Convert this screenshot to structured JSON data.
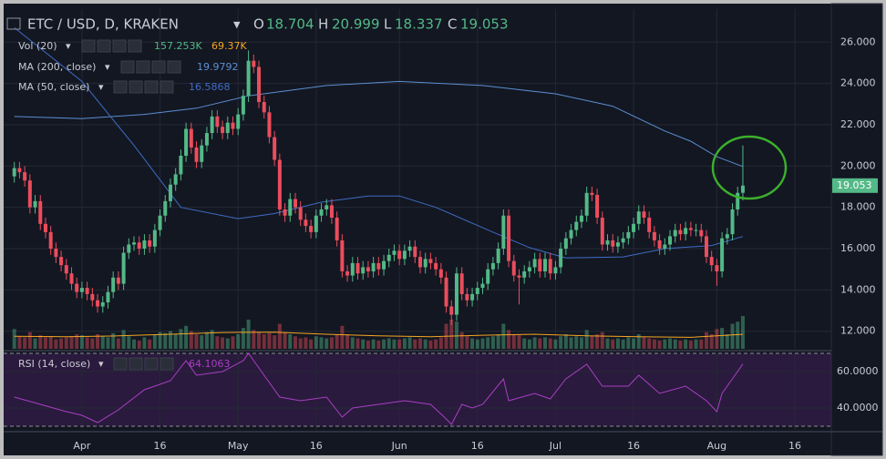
{
  "chart_data": {
    "type": "candlestick",
    "title": "ETC / USD, D, KRAKEN",
    "ohlc_labels": [
      "O",
      "H",
      "L",
      "C"
    ],
    "up_color": "#53b987",
    "down_color": "#eb4d5c",
    "xlim": [
      -1,
      157
    ],
    "xticks": [
      {
        "value": 13,
        "label": "Apr"
      },
      {
        "value": 28,
        "label": "16"
      },
      {
        "value": 43,
        "label": "May"
      },
      {
        "value": 58,
        "label": "16"
      },
      {
        "value": 74,
        "label": "Jun"
      },
      {
        "value": 89,
        "label": "16"
      },
      {
        "value": 104,
        "label": "Jul"
      },
      {
        "value": 119,
        "label": "16"
      },
      {
        "value": 135,
        "label": "Aug"
      },
      {
        "value": 150,
        "label": "16"
      }
    ],
    "ylim": [
      11.15,
      27.6
    ],
    "yticks": [
      {
        "value": 12,
        "label": "12.000"
      },
      {
        "value": 14,
        "label": "14.000"
      },
      {
        "value": 16,
        "label": "16.000"
      },
      {
        "value": 18,
        "label": "18.000"
      },
      {
        "value": 20,
        "label": "20.000"
      },
      {
        "value": 22,
        "label": "22.000"
      },
      {
        "value": 24,
        "label": "24.000"
      },
      {
        "value": 26,
        "label": "26.000"
      }
    ],
    "grid": true,
    "x": [
      0,
      1,
      2,
      3,
      4,
      5,
      6,
      7,
      8,
      9,
      10,
      11,
      12,
      13,
      14,
      15,
      16,
      17,
      18,
      19,
      20,
      21,
      22,
      23,
      24,
      25,
      26,
      27,
      28,
      29,
      30,
      31,
      32,
      33,
      34,
      35,
      36,
      37,
      38,
      39,
      40,
      41,
      42,
      43,
      44,
      45,
      46,
      47,
      48,
      49,
      50,
      51,
      52,
      53,
      54,
      55,
      56,
      57,
      58,
      59,
      60,
      61,
      62,
      63,
      64,
      65,
      66,
      67,
      68,
      69,
      70,
      71,
      72,
      73,
      74,
      75,
      76,
      77,
      78,
      79,
      80,
      81,
      82,
      83,
      84,
      85,
      86,
      87,
      88,
      89,
      90,
      91,
      92,
      93,
      94,
      95,
      96,
      97,
      98,
      99,
      100,
      101,
      102,
      103,
      104,
      105,
      106,
      107,
      108,
      109,
      110,
      111,
      112,
      113,
      114,
      115,
      116,
      117,
      118,
      119,
      120,
      121,
      122,
      123,
      124,
      125,
      126,
      127,
      128,
      129,
      130,
      131,
      132,
      133,
      134,
      135,
      136,
      137,
      138,
      139,
      140
    ],
    "open": [
      19.5,
      19.9,
      19.7,
      19.3,
      18.0,
      18.3,
      17.2,
      16.8,
      16.0,
      15.6,
      15.2,
      14.8,
      14.3,
      13.9,
      14.1,
      13.8,
      13.5,
      13.2,
      13.4,
      13.9,
      14.6,
      14.3,
      15.8,
      16.2,
      16.3,
      16.0,
      16.4,
      16.1,
      16.9,
      17.6,
      18.3,
      19.1,
      19.6,
      20.5,
      21.8,
      20.9,
      20.2,
      21.0,
      21.6,
      22.4,
      21.9,
      21.6,
      22.1,
      21.8,
      22.5,
      23.4,
      25.1,
      24.8,
      23.1,
      22.6,
      21.4,
      20.3,
      17.9,
      17.6,
      18.4,
      18.0,
      17.4,
      17.1,
      16.8,
      17.6,
      17.9,
      18.1,
      17.5,
      16.4,
      14.9,
      14.7,
      15.3,
      14.8,
      15.1,
      14.9,
      15.3,
      15.0,
      15.4,
      15.7,
      15.9,
      15.5,
      15.9,
      16.1,
      15.6,
      15.1,
      15.5,
      15.3,
      15.0,
      14.6,
      13.2,
      12.8,
      14.8,
      13.8,
      13.5,
      13.8,
      14.1,
      14.3,
      15.0,
      15.3,
      16.0,
      17.6,
      15.4,
      14.7,
      14.6,
      14.9,
      15.1,
      15.5,
      14.9,
      15.5,
      14.8,
      15.1,
      16.0,
      16.5,
      16.9,
      17.3,
      17.6,
      18.7,
      18.6,
      17.5,
      16.2,
      16.4,
      16.1,
      16.3,
      16.5,
      16.8,
      17.2,
      17.8,
      17.5,
      16.8,
      16.4,
      16.0,
      16.2,
      16.6,
      16.9,
      16.7,
      17.0,
      16.9,
      16.9,
      16.6,
      15.6,
      15.2,
      14.9,
      16.5,
      16.7,
      17.9,
      18.704
    ],
    "high": [
      20.2,
      20.2,
      20.0,
      19.6,
      18.6,
      18.6,
      17.5,
      17.1,
      16.3,
      15.9,
      15.5,
      15.1,
      14.6,
      14.4,
      14.4,
      14.1,
      13.8,
      13.7,
      14.2,
      14.9,
      14.9,
      16.1,
      16.5,
      16.6,
      16.6,
      16.7,
      16.7,
      17.2,
      17.9,
      18.6,
      19.4,
      19.9,
      20.8,
      22.1,
      22.1,
      21.2,
      21.3,
      21.9,
      22.7,
      22.7,
      22.2,
      22.4,
      22.4,
      22.8,
      23.7,
      25.6,
      25.4,
      25.1,
      23.4,
      22.9,
      21.7,
      20.6,
      18.2,
      18.7,
      18.7,
      18.3,
      17.7,
      17.4,
      17.9,
      18.2,
      18.4,
      18.4,
      17.8,
      16.7,
      15.2,
      15.6,
      15.6,
      15.4,
      15.4,
      15.6,
      15.6,
      15.7,
      16.0,
      16.2,
      16.2,
      16.2,
      16.4,
      16.4,
      15.9,
      15.8,
      15.8,
      15.6,
      15.3,
      14.9,
      13.5,
      15.1,
      15.1,
      14.1,
      14.1,
      14.4,
      14.6,
      15.3,
      15.6,
      16.3,
      17.9,
      17.9,
      15.7,
      15.0,
      15.2,
      15.4,
      15.8,
      15.8,
      15.8,
      15.8,
      15.4,
      16.3,
      16.8,
      17.2,
      17.6,
      17.9,
      19.0,
      19.0,
      18.9,
      17.8,
      16.7,
      16.7,
      16.6,
      16.8,
      17.1,
      17.5,
      18.1,
      18.1,
      17.8,
      17.1,
      16.7,
      16.5,
      16.9,
      17.2,
      17.2,
      17.3,
      17.3,
      17.2,
      17.2,
      16.9,
      15.9,
      15.5,
      16.8,
      17.0,
      18.2,
      19.0,
      20.999
    ],
    "low": [
      19.2,
      19.4,
      19.0,
      17.7,
      17.7,
      16.9,
      16.5,
      15.7,
      15.3,
      14.9,
      14.5,
      14.0,
      13.6,
      13.6,
      13.5,
      13.2,
      12.9,
      12.9,
      13.1,
      13.6,
      14.0,
      14.0,
      15.5,
      15.9,
      15.7,
      15.7,
      15.8,
      15.8,
      16.6,
      17.3,
      18.0,
      18.8,
      19.3,
      20.2,
      20.6,
      19.9,
      19.9,
      20.7,
      21.3,
      21.6,
      21.3,
      21.3,
      21.5,
      21.5,
      22.2,
      23.1,
      24.5,
      22.8,
      22.3,
      21.1,
      20.0,
      17.6,
      17.3,
      17.3,
      17.7,
      17.1,
      16.8,
      16.5,
      16.5,
      17.3,
      17.6,
      17.2,
      16.1,
      14.6,
      14.4,
      14.4,
      14.5,
      14.5,
      14.6,
      14.6,
      14.7,
      14.7,
      15.1,
      15.4,
      15.2,
      15.2,
      15.6,
      15.3,
      14.8,
      14.8,
      15.0,
      14.7,
      14.3,
      12.9,
      12.3,
      12.5,
      13.5,
      13.2,
      13.2,
      13.5,
      13.8,
      14.0,
      14.7,
      15.0,
      15.7,
      15.1,
      14.4,
      13.3,
      14.3,
      14.6,
      14.8,
      14.6,
      14.6,
      14.5,
      14.5,
      14.8,
      15.7,
      16.2,
      16.6,
      17.0,
      17.3,
      18.3,
      17.2,
      15.9,
      15.9,
      15.8,
      15.8,
      16.0,
      16.2,
      16.5,
      16.9,
      17.2,
      16.5,
      16.1,
      15.7,
      15.7,
      15.9,
      16.3,
      16.4,
      16.4,
      16.6,
      16.6,
      16.3,
      15.3,
      14.9,
      14.2,
      14.6,
      16.2,
      16.4,
      17.6,
      18.337
    ],
    "close": [
      19.9,
      19.7,
      19.3,
      18.0,
      18.3,
      17.2,
      16.8,
      16.0,
      15.6,
      15.2,
      14.8,
      14.3,
      13.9,
      14.1,
      13.8,
      13.5,
      13.2,
      13.4,
      13.9,
      14.6,
      14.3,
      15.8,
      16.2,
      16.3,
      16.0,
      16.4,
      16.1,
      16.9,
      17.6,
      18.3,
      19.1,
      19.6,
      20.5,
      21.8,
      20.9,
      20.2,
      21.0,
      21.6,
      22.4,
      21.9,
      21.6,
      22.1,
      21.8,
      22.5,
      23.4,
      25.1,
      24.8,
      23.1,
      22.6,
      21.4,
      20.3,
      17.9,
      17.6,
      18.4,
      18.0,
      17.4,
      17.1,
      16.8,
      17.6,
      17.9,
      18.1,
      17.5,
      16.4,
      14.9,
      14.7,
      15.3,
      14.8,
      15.1,
      14.9,
      15.3,
      15.0,
      15.4,
      15.7,
      15.9,
      15.5,
      15.9,
      16.1,
      15.6,
      15.1,
      15.5,
      15.3,
      15.0,
      14.6,
      13.2,
      12.8,
      14.8,
      13.8,
      13.5,
      13.8,
      14.1,
      14.3,
      15.0,
      15.3,
      16.0,
      17.6,
      15.4,
      14.7,
      14.6,
      14.9,
      15.1,
      15.5,
      14.9,
      15.5,
      14.8,
      15.1,
      16.0,
      16.5,
      16.9,
      17.3,
      17.6,
      18.7,
      18.6,
      17.5,
      16.2,
      16.4,
      16.1,
      16.3,
      16.5,
      16.8,
      17.2,
      17.8,
      17.5,
      16.8,
      16.4,
      16.0,
      16.2,
      16.6,
      16.9,
      16.7,
      17.0,
      16.9,
      16.9,
      16.6,
      15.6,
      15.2,
      14.9,
      16.5,
      16.7,
      17.9,
      18.704,
      19.053
    ],
    "indicators": {
      "volume": {
        "name": "Vol (20)",
        "value_label": "157.253K",
        "ma_label": "69.37K",
        "ma_color": "#f5a623",
        "values": [
          95,
          60,
          55,
          80,
          50,
          65,
          55,
          60,
          45,
          50,
          55,
          60,
          70,
          65,
          55,
          50,
          70,
          60,
          55,
          75,
          50,
          90,
          60,
          45,
          40,
          55,
          45,
          70,
          80,
          75,
          85,
          70,
          95,
          110,
          85,
          70,
          65,
          80,
          90,
          60,
          55,
          50,
          60,
          70,
          100,
          140,
          90,
          80,
          70,
          75,
          65,
          120,
          80,
          70,
          60,
          50,
          55,
          45,
          60,
          55,
          50,
          55,
          70,
          110,
          70,
          55,
          50,
          45,
          40,
          45,
          40,
          45,
          50,
          45,
          45,
          50,
          55,
          45,
          50,
          45,
          40,
          45,
          55,
          120,
          140,
          130,
          80,
          60,
          50,
          45,
          50,
          55,
          60,
          70,
          120,
          90,
          70,
          65,
          50,
          45,
          55,
          50,
          55,
          50,
          45,
          60,
          70,
          55,
          60,
          55,
          90,
          60,
          70,
          80,
          50,
          45,
          50,
          45,
          55,
          50,
          70,
          55,
          50,
          45,
          40,
          45,
          50,
          45,
          40,
          45,
          40,
          45,
          45,
          80,
          70,
          95,
          100,
          70,
          120,
          130,
          157.253
        ],
        "ma_x": [
          0,
          10,
          20,
          30,
          40,
          50,
          60,
          70,
          80,
          90,
          100,
          110,
          120,
          130,
          140
        ],
        "ma_values": [
          60,
          58,
          62,
          70,
          78,
          80,
          70,
          62,
          58,
          65,
          70,
          62,
          58,
          55,
          69.37
        ]
      },
      "ma200": {
        "name": "MA (200, close)",
        "color": "#5b8fd0",
        "x": [
          0,
          13,
          25,
          35,
          45,
          60,
          74,
          90,
          104,
          115,
          125,
          130,
          135,
          140
        ],
        "values": [
          22.4,
          22.3,
          22.5,
          22.8,
          23.4,
          23.9,
          24.1,
          23.9,
          23.5,
          22.9,
          21.7,
          21.2,
          20.45,
          19.9792
        ]
      },
      "ma50": {
        "name": "MA (50, close)",
        "color": "#3f6cc4",
        "x": [
          0,
          13,
          23,
          32,
          43,
          50,
          59,
          68,
          74,
          81,
          92,
          99,
          106,
          117,
          125,
          134,
          140
        ],
        "values": [
          26.7,
          24.1,
          21.0,
          18.0,
          17.45,
          17.7,
          18.25,
          18.55,
          18.55,
          18.0,
          16.8,
          16.05,
          15.55,
          15.6,
          16.0,
          16.15,
          16.5868
        ]
      },
      "rsi": {
        "name": "RSI (14, close)",
        "color": "#a83fc4",
        "ylim": [
          28,
          70
        ],
        "yticks": [
          {
            "value": 40,
            "label": "40.0000"
          },
          {
            "value": 60,
            "label": "60.0000"
          }
        ],
        "bands": [
          30,
          70
        ],
        "x": [
          0,
          5,
          10,
          13,
          16,
          20,
          25,
          30,
          33,
          35,
          40,
          44,
          45,
          47,
          51,
          55,
          60,
          63,
          65,
          70,
          75,
          80,
          83,
          84,
          86,
          88,
          90,
          94,
          95,
          100,
          103,
          106,
          110,
          113,
          118,
          120,
          124,
          129,
          133,
          135,
          136,
          138,
          140
        ],
        "values": [
          46,
          42,
          38,
          36,
          32,
          39,
          50,
          55,
          66,
          58,
          60,
          66,
          70,
          62,
          46,
          44,
          46,
          35,
          40,
          42,
          44,
          42,
          34,
          31,
          42,
          40,
          42,
          56,
          44,
          48,
          45,
          56,
          64,
          52,
          52,
          58,
          48,
          52,
          44,
          38,
          48,
          56,
          64.1063
        ]
      }
    }
  }
}
